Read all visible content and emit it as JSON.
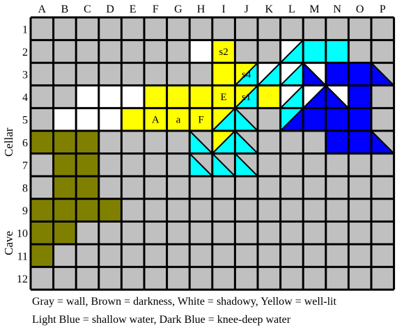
{
  "columns": [
    "A",
    "B",
    "C",
    "D",
    "E",
    "F",
    "G",
    "H",
    "I",
    "J",
    "K",
    "L",
    "M",
    "N",
    "O",
    "P"
  ],
  "rows": [
    "1",
    "2",
    "3",
    "4",
    "5",
    "6",
    "7",
    "8",
    "9",
    "10",
    "11",
    "12"
  ],
  "side_labels": {
    "upper": "Cellar",
    "lower": "Cave"
  },
  "colors": {
    "wall": "#c0c0c0",
    "dark": "#808000",
    "shadow": "#ffffff",
    "lit": "#ffff00",
    "shallow": "#00ffff",
    "deep": "#0000ff",
    "grid": "#000000"
  },
  "cells": [
    {
      "col": "H",
      "row": "2",
      "fill": "shadow"
    },
    {
      "col": "I",
      "row": "2",
      "fill": "lit",
      "label": "s2"
    },
    {
      "col": "L",
      "row": "2",
      "split": "tr",
      "tl": "shadow",
      "br": "shallow"
    },
    {
      "col": "M",
      "row": "2",
      "fill": "shallow"
    },
    {
      "col": "N",
      "row": "2",
      "fill": "shallow"
    },
    {
      "col": "I",
      "row": "3",
      "fill": "lit"
    },
    {
      "col": "J",
      "row": "3",
      "split": "tr",
      "tl": "lit",
      "br": "shallow",
      "label": "s4"
    },
    {
      "col": "K",
      "row": "3",
      "split": "tr",
      "tl": "shadow",
      "br": "shallow"
    },
    {
      "col": "L",
      "row": "3",
      "split": "tr",
      "tl": "shadow",
      "br": "shallow"
    },
    {
      "col": "M",
      "row": "3",
      "split": "tl",
      "bl": "deep",
      "tr": "shadow"
    },
    {
      "col": "N",
      "row": "3",
      "fill": "deep"
    },
    {
      "col": "O",
      "row": "3",
      "fill": "deep"
    },
    {
      "col": "P",
      "row": "3",
      "split": "tl",
      "bl": "deep",
      "tr": "wall"
    },
    {
      "col": "C",
      "row": "4",
      "fill": "shadow"
    },
    {
      "col": "D",
      "row": "4",
      "fill": "shadow"
    },
    {
      "col": "E",
      "row": "4",
      "fill": "shadow"
    },
    {
      "col": "F",
      "row": "4",
      "fill": "lit"
    },
    {
      "col": "G",
      "row": "4",
      "fill": "lit"
    },
    {
      "col": "H",
      "row": "4",
      "fill": "lit"
    },
    {
      "col": "I",
      "row": "4",
      "fill": "lit",
      "label": "E"
    },
    {
      "col": "J",
      "row": "4",
      "split": "tr",
      "tl": "lit",
      "br": "shallow",
      "label": "s1"
    },
    {
      "col": "K",
      "row": "4",
      "fill": "lit"
    },
    {
      "col": "L",
      "row": "4",
      "split": "tr",
      "tl": "shadow",
      "br": "shallow"
    },
    {
      "col": "M",
      "row": "4",
      "split": "tr",
      "tl": "shadow",
      "br": "deep"
    },
    {
      "col": "N",
      "row": "4",
      "split": "tl",
      "bl": "deep",
      "tr": "shadow"
    },
    {
      "col": "O",
      "row": "4",
      "fill": "deep"
    },
    {
      "col": "P",
      "row": "4",
      "fill": "wall"
    },
    {
      "col": "B",
      "row": "5",
      "fill": "shadow"
    },
    {
      "col": "C",
      "row": "5",
      "fill": "shadow"
    },
    {
      "col": "D",
      "row": "5",
      "fill": "shadow"
    },
    {
      "col": "E",
      "row": "5",
      "fill": "lit"
    },
    {
      "col": "F",
      "row": "5",
      "fill": "lit",
      "label": "A"
    },
    {
      "col": "G",
      "row": "5",
      "fill": "lit",
      "label": "a"
    },
    {
      "col": "H",
      "row": "5",
      "fill": "lit",
      "label": "F"
    },
    {
      "col": "I",
      "row": "5",
      "split": "tr",
      "tl": "lit",
      "br": "shallow"
    },
    {
      "col": "J",
      "row": "5",
      "split": "tl",
      "bl": "shallow",
      "tr": "wall"
    },
    {
      "col": "L",
      "row": "5",
      "split": "tr",
      "tl": "shallow",
      "br": "deep"
    },
    {
      "col": "M",
      "row": "5",
      "fill": "deep"
    },
    {
      "col": "N",
      "row": "5",
      "fill": "deep"
    },
    {
      "col": "O",
      "row": "5",
      "fill": "deep"
    },
    {
      "col": "A",
      "row": "6",
      "fill": "dark"
    },
    {
      "col": "B",
      "row": "6",
      "fill": "dark"
    },
    {
      "col": "C",
      "row": "6",
      "fill": "dark"
    },
    {
      "col": "H",
      "row": "6",
      "split": "tl",
      "bl": "shallow",
      "tr": "wall"
    },
    {
      "col": "I",
      "row": "6",
      "split": "tr",
      "tl": "lit",
      "br": "shallow"
    },
    {
      "col": "J",
      "row": "6",
      "split": "tl",
      "bl": "shallow",
      "tr": "wall"
    },
    {
      "col": "N",
      "row": "6",
      "fill": "deep"
    },
    {
      "col": "O",
      "row": "6",
      "fill": "deep"
    },
    {
      "col": "P",
      "row": "6",
      "split": "tl",
      "bl": "deep",
      "tr": "wall"
    },
    {
      "col": "B",
      "row": "7",
      "fill": "dark"
    },
    {
      "col": "C",
      "row": "7",
      "fill": "dark"
    },
    {
      "col": "H",
      "row": "7",
      "split": "tl",
      "bl": "shallow",
      "tr": "wall"
    },
    {
      "col": "I",
      "row": "7",
      "split": "tl",
      "bl": "shallow",
      "tr": "wall"
    },
    {
      "col": "J",
      "row": "7",
      "split": "tl",
      "bl": "shallow",
      "tr": "wall"
    },
    {
      "col": "B",
      "row": "8",
      "fill": "dark"
    },
    {
      "col": "C",
      "row": "8",
      "fill": "dark"
    },
    {
      "col": "A",
      "row": "9",
      "fill": "dark"
    },
    {
      "col": "B",
      "row": "9",
      "fill": "dark"
    },
    {
      "col": "C",
      "row": "9",
      "fill": "dark"
    },
    {
      "col": "D",
      "row": "9",
      "fill": "dark"
    },
    {
      "col": "A",
      "row": "10",
      "fill": "dark"
    },
    {
      "col": "B",
      "row": "10",
      "fill": "dark"
    },
    {
      "col": "A",
      "row": "11",
      "fill": "dark"
    }
  ],
  "legend": {
    "line1": "Gray = wall, Brown = darkness, White = shadowy, Yellow = well-lit",
    "line2": "Light Blue = shallow water, Dark Blue = knee-deep water"
  }
}
